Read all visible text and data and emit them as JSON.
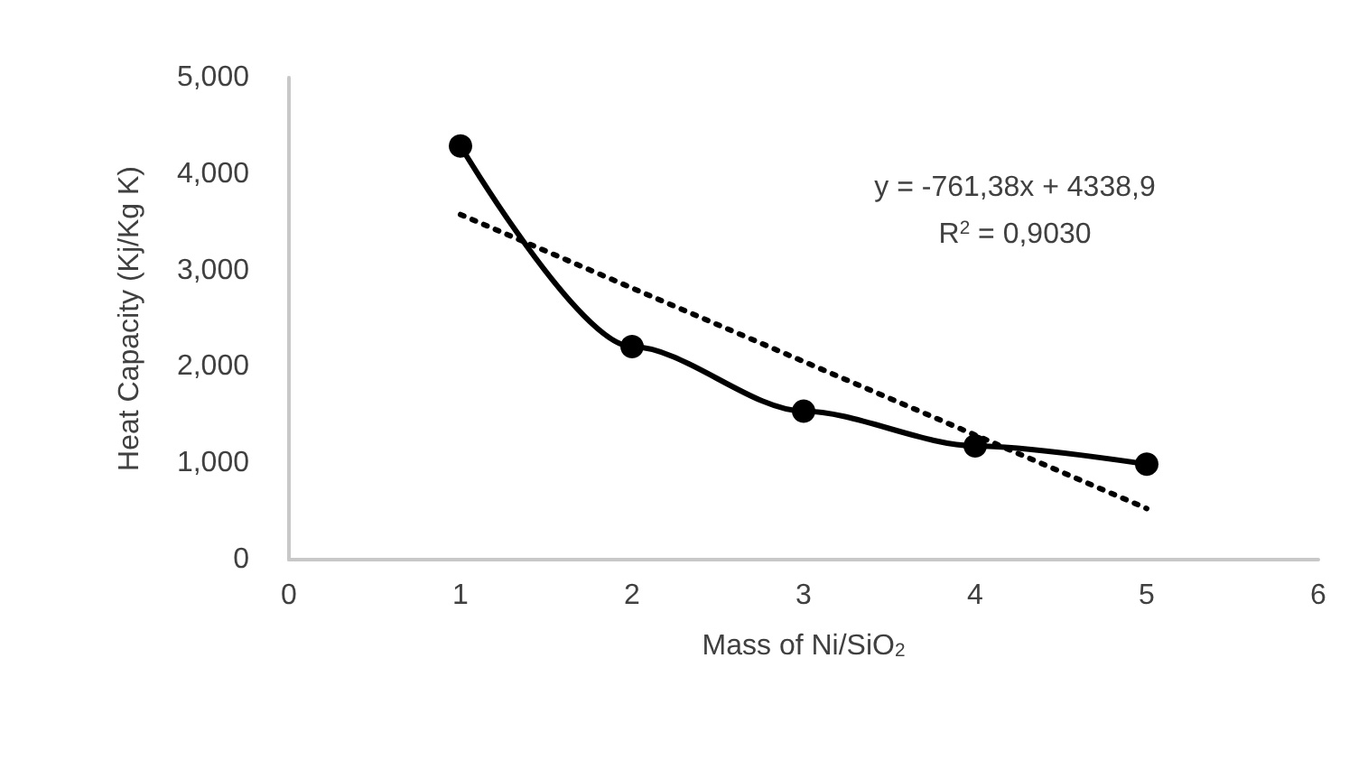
{
  "chart_data": {
    "type": "line",
    "xlabel": "Mass of Ni/SiO$_{2}$",
    "ylabel": "Heat Capacity (Kj/Kg K)",
    "x": [
      1,
      2,
      3,
      4,
      5
    ],
    "series": [
      {
        "color": "#000000",
        "values": [
          4290,
          2210,
          1540,
          1180,
          990
        ],
        "marker": "circle",
        "line_style": "solid"
      },
      {
        "type": "line",
        "color": "#000000",
        "x": [
          1,
          5
        ],
        "values": [
          3580,
          530
        ],
        "marker": "none",
        "line_style": "dotted"
      }
    ],
    "xlim": [
      0,
      6
    ],
    "xticks": [
      0,
      1,
      2,
      3,
      4,
      5,
      6
    ],
    "ylim": [
      0,
      5000
    ],
    "yticks": [
      0,
      {
        "value": 1000,
        "label": "1,000"
      },
      {
        "value": 2000,
        "label": "2,000"
      },
      {
        "value": 3000,
        "label": "3,000"
      },
      {
        "value": 4000,
        "label": "4,000"
      },
      {
        "value": 5000,
        "label": "5,000"
      }
    ],
    "annotations": [
      "y = -761,38x + 4338,9",
      "R$^{2}$ = 0,9030"
    ],
    "grid": false
  }
}
